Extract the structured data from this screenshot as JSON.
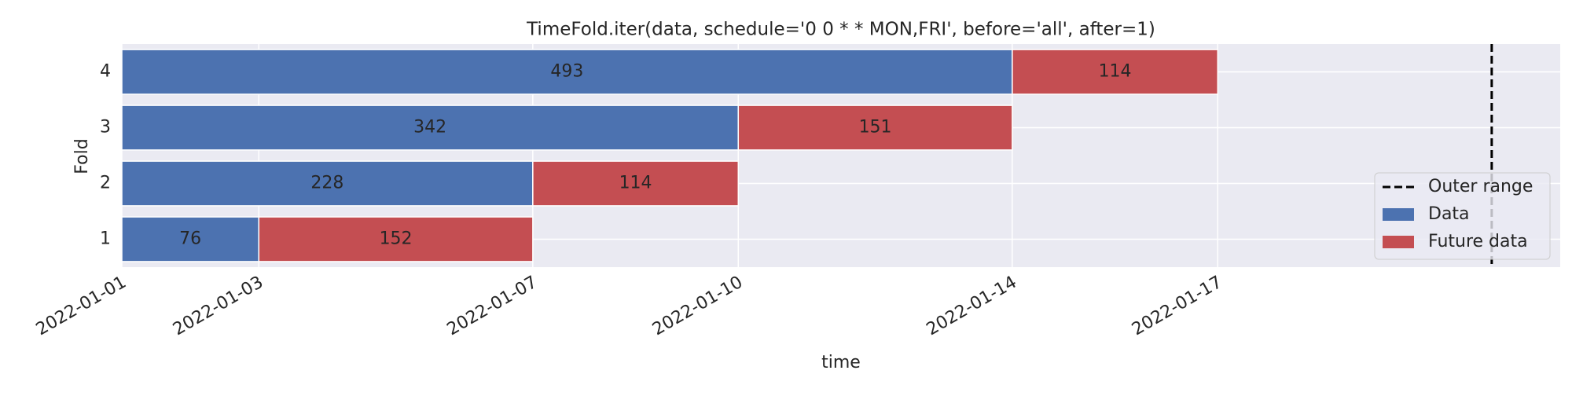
{
  "chart_data": {
    "type": "timeline",
    "title": "TimeFold.iter(data, schedule='0 0 * * MON,FRI', before='all', after=1)",
    "xlabel": "time",
    "ylabel": "Fold",
    "categories": [
      "1",
      "2",
      "3",
      "4"
    ],
    "series": [
      {
        "name": "Data",
        "color": "#4c72b0",
        "starts": [
          "2022-01-01",
          "2022-01-01",
          "2022-01-01",
          "2022-01-01"
        ],
        "ends": [
          "2022-01-03",
          "2022-01-07",
          "2022-01-10",
          "2022-01-14"
        ],
        "values": [
          76,
          228,
          342,
          493
        ]
      },
      {
        "name": "Future data",
        "color": "#c44e52",
        "starts": [
          "2022-01-03",
          "2022-01-07",
          "2022-01-10",
          "2022-01-14"
        ],
        "ends": [
          "2022-01-07",
          "2022-01-10",
          "2022-01-14",
          "2022-01-17"
        ],
        "values": [
          152,
          114,
          151,
          114
        ]
      }
    ],
    "outer_range": {
      "name": "Outer range",
      "x": "2022-01-21",
      "color": "#000000",
      "style": "dashed"
    },
    "xlim": [
      "2022-01-01",
      "2022-01-22"
    ],
    "xticks": [
      "2022-01-01",
      "2022-01-03",
      "2022-01-07",
      "2022-01-10",
      "2022-01-14",
      "2022-01-17"
    ],
    "grid": true,
    "legend": "lower right",
    "background": "#eaeaf2"
  }
}
